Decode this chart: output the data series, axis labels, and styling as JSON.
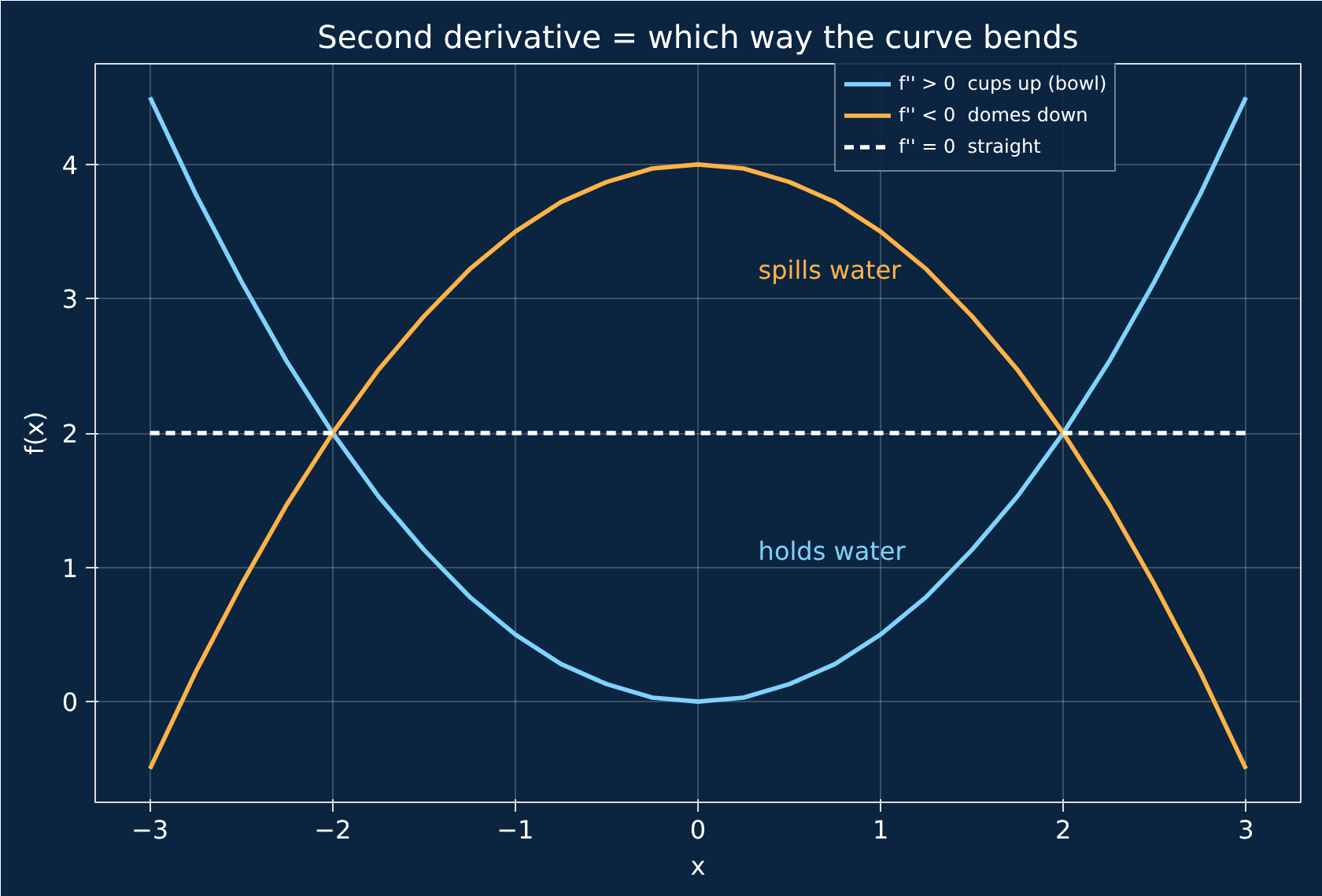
{
  "chart_data": {
    "type": "line",
    "title": "Second derivative = which way the curve bends",
    "xlabel": "x",
    "ylabel": "f(x)",
    "xlim": [
      -3.3,
      3.3
    ],
    "ylim": [
      -0.75,
      4.75
    ],
    "xticks": [
      {
        "value": -3,
        "label": "−3"
      },
      {
        "value": -2,
        "label": "−2"
      },
      {
        "value": -1,
        "label": "−1"
      },
      0,
      1,
      2,
      3
    ],
    "yticks": [
      0,
      1,
      2,
      3,
      4
    ],
    "grid": true,
    "legend": "top right",
    "marker": "none",
    "series": [
      {
        "name": "f'' > 0  cups up (bowl)",
        "color": "#7fd3ff",
        "line_style": "solid",
        "x": [
          -3,
          -2.75,
          -2.5,
          -2.25,
          -2,
          -1.75,
          -1.5,
          -1.25,
          -1,
          -0.75,
          -0.5,
          -0.25,
          0,
          0.25,
          0.5,
          0.75,
          1,
          1.25,
          1.5,
          1.75,
          2,
          2.25,
          2.5,
          2.75,
          3
        ],
        "values": [
          4.5,
          3.78,
          3.13,
          2.53,
          2,
          1.53,
          1.13,
          0.78,
          0.5,
          0.28,
          0.13,
          0.03,
          0,
          0.03,
          0.13,
          0.28,
          0.5,
          0.78,
          1.13,
          1.53,
          2,
          2.53,
          3.13,
          3.78,
          4.5
        ]
      },
      {
        "name": "f'' < 0  domes down",
        "color": "#ffb347",
        "line_style": "solid",
        "x": [
          -3,
          -2.75,
          -2.5,
          -2.25,
          -2,
          -1.75,
          -1.5,
          -1.25,
          -1,
          -0.75,
          -0.5,
          -0.25,
          0,
          0.25,
          0.5,
          0.75,
          1,
          1.25,
          1.5,
          1.75,
          2,
          2.25,
          2.5,
          2.75,
          3
        ],
        "values": [
          -0.5,
          0.22,
          0.87,
          1.47,
          2,
          2.47,
          2.87,
          3.22,
          3.5,
          3.72,
          3.87,
          3.97,
          4,
          3.97,
          3.87,
          3.72,
          3.5,
          3.22,
          2.87,
          2.47,
          2,
          1.47,
          0.87,
          0.22,
          -0.5
        ]
      },
      {
        "name": "f'' = 0  straight",
        "color": "#ffffff",
        "line_style": "dashed",
        "x": [
          -3,
          3
        ],
        "values": [
          2,
          2
        ]
      }
    ],
    "annotations": [
      "spills water",
      "holds water"
    ]
  }
}
